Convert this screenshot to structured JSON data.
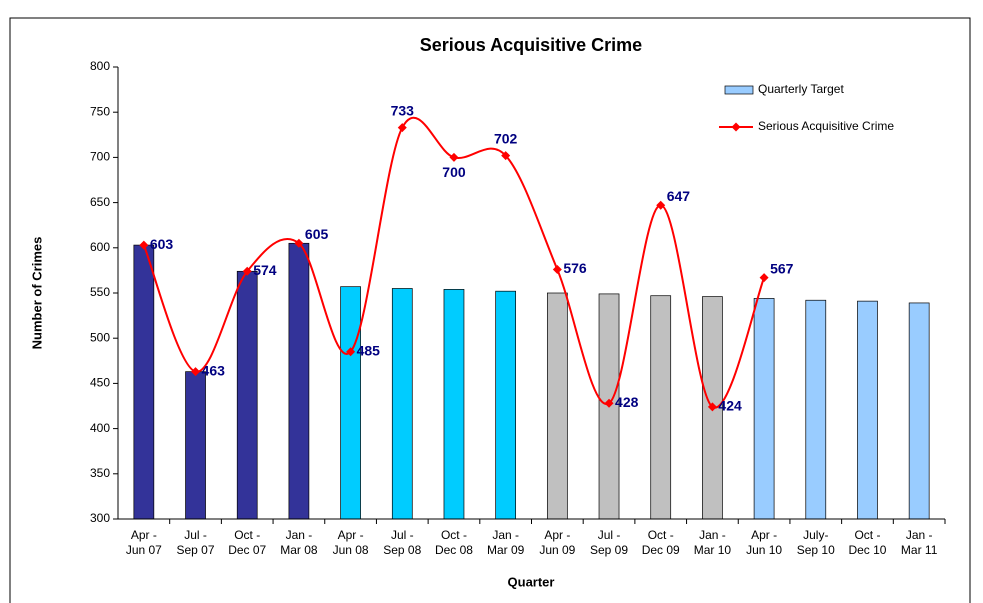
{
  "chart_data": {
    "type": "bar-line",
    "title": "Serious Acquisitive Crime",
    "x_label": "Quarter",
    "y_label": "Number of Crimes",
    "categories": [
      [
        "Apr -",
        "Jun 07"
      ],
      [
        "Jul -",
        "Sep 07"
      ],
      [
        "Oct -",
        "Dec 07"
      ],
      [
        "Jan -",
        "Mar 08"
      ],
      [
        "Apr -",
        "Jun 08"
      ],
      [
        "Jul -",
        "Sep 08"
      ],
      [
        "Oct -",
        "Dec 08"
      ],
      [
        "Jan -",
        "Mar 09"
      ],
      [
        "Apr -",
        "Jun 09"
      ],
      [
        "Jul -",
        "Sep 09"
      ],
      [
        "Oct -",
        "Dec 09"
      ],
      [
        "Jan -",
        "Mar 10"
      ],
      [
        "Apr -",
        "Jun 10"
      ],
      [
        "July-",
        "Sep 10"
      ],
      [
        "Oct -",
        "Dec 10"
      ],
      [
        "Jan -",
        "Mar 11"
      ]
    ],
    "series": [
      {
        "name": "Quarterly Target",
        "type": "bar",
        "color": "#99ccff",
        "colors": [
          "#333399",
          "#333399",
          "#333399",
          "#333399",
          "#00ccff",
          "#00ccff",
          "#00ccff",
          "#00ccff",
          "#c0c0c0",
          "#c0c0c0",
          "#c0c0c0",
          "#c0c0c0",
          "#99ccff",
          "#99ccff",
          "#99ccff",
          "#99ccff"
        ],
        "values": [
          603,
          463,
          574,
          605,
          557,
          555,
          554,
          552,
          550,
          549,
          547,
          546,
          544,
          542,
          541,
          539
        ]
      },
      {
        "name": "Serious Acquisitive Crime",
        "type": "line",
        "color": "#ff0000",
        "label_color": "#000080",
        "values": [
          603,
          463,
          574,
          605,
          485,
          733,
          700,
          702,
          576,
          428,
          647,
          424,
          567,
          null,
          null,
          null
        ]
      }
    ],
    "ylim": [
      300,
      800
    ],
    "yticks": [
      300,
      350,
      400,
      450,
      500,
      550,
      600,
      650,
      700,
      750,
      800
    ],
    "legend": "top-right",
    "smooth": true
  }
}
